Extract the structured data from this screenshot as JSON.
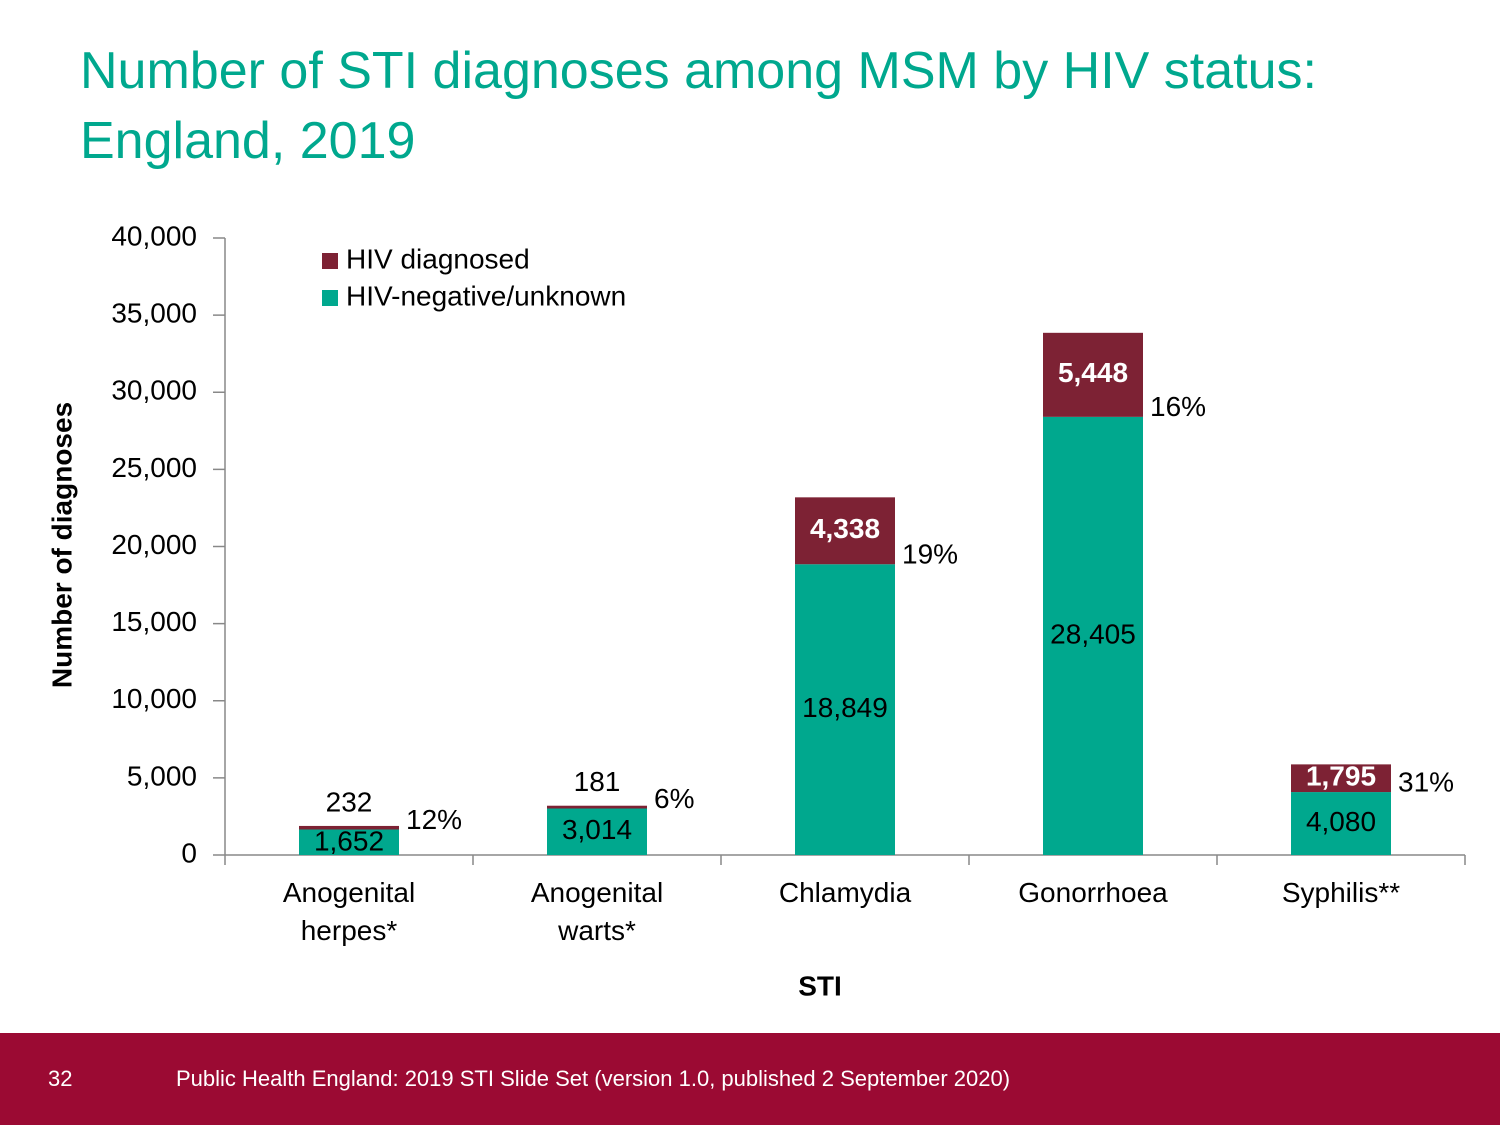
{
  "chart_data": {
    "type": "stacked_bar",
    "title": "Number of STI diagnoses among MSM by HIV status: England, 2019",
    "y_label": "Number of diagnoses",
    "x_label": "STI",
    "categories": [
      "Anogenital herpes*",
      "Anogenital warts*",
      "Chlamydia",
      "Gonorrhoea",
      "Syphilis**"
    ],
    "series": [
      {
        "name": "HIV-negative/unknown",
        "color": "#00a88e",
        "values": [
          1652,
          3014,
          18849,
          28405,
          4080
        ],
        "value_labels": [
          "1,652",
          "3,014",
          "18,849",
          "28,405",
          "4,080"
        ]
      },
      {
        "name": "HIV diagnosed",
        "color": "#7d2234",
        "values": [
          232,
          181,
          4338,
          5448,
          1795
        ],
        "value_labels": [
          "232",
          "181",
          "4,338",
          "5,448",
          "1,795"
        ]
      }
    ],
    "hiv_diagnosed_share": {
      "values": [
        12,
        6,
        19,
        16,
        31
      ],
      "value_labels": [
        "12%",
        "6%",
        "19%",
        "16%",
        "31%"
      ]
    },
    "ylim": [
      0,
      40000
    ],
    "yticks": [
      0,
      {
        "value": 5000,
        "label": "5,000"
      },
      {
        "value": 10000,
        "label": "10,000"
      },
      {
        "value": 15000,
        "label": "15,000"
      },
      {
        "value": 20000,
        "label": "20,000"
      },
      {
        "value": 25000,
        "label": "25,000"
      },
      {
        "value": 30000,
        "label": "30,000"
      },
      {
        "value": 35000,
        "label": "35,000"
      },
      {
        "value": 40000,
        "label": "40,000"
      }
    ],
    "legend_position": "upper left"
  },
  "footer": {
    "slide_number": "32",
    "source": "Public Health England: 2019 STI Slide Set (version 1.0, published 2 September 2020)"
  }
}
